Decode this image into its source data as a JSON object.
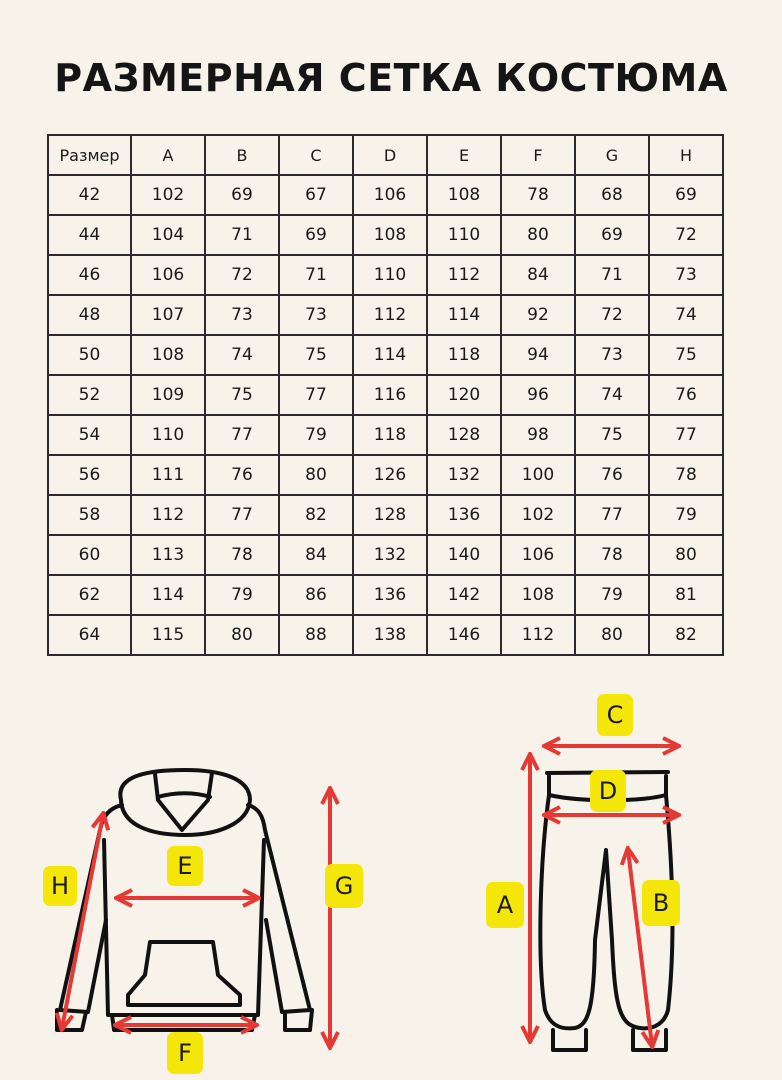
{
  "title": "РАЗМЕРНАЯ СЕТКА КОСТЮМА",
  "table": {
    "headers": [
      "Размер",
      "A",
      "B",
      "C",
      "D",
      "E",
      "F",
      "G",
      "H"
    ],
    "rows": [
      [
        "42",
        "102",
        "69",
        "67",
        "106",
        "108",
        "78",
        "68",
        "69"
      ],
      [
        "44",
        "104",
        "71",
        "69",
        "108",
        "110",
        "80",
        "69",
        "72"
      ],
      [
        "46",
        "106",
        "72",
        "71",
        "110",
        "112",
        "84",
        "71",
        "73"
      ],
      [
        "48",
        "107",
        "73",
        "73",
        "112",
        "114",
        "92",
        "72",
        "74"
      ],
      [
        "50",
        "108",
        "74",
        "75",
        "114",
        "118",
        "94",
        "73",
        "75"
      ],
      [
        "52",
        "109",
        "75",
        "77",
        "116",
        "120",
        "96",
        "74",
        "76"
      ],
      [
        "54",
        "110",
        "77",
        "79",
        "118",
        "128",
        "98",
        "75",
        "77"
      ],
      [
        "56",
        "111",
        "76",
        "80",
        "126",
        "132",
        "100",
        "76",
        "78"
      ],
      [
        "58",
        "112",
        "77",
        "82",
        "128",
        "136",
        "102",
        "77",
        "79"
      ],
      [
        "60",
        "113",
        "78",
        "84",
        "132",
        "140",
        "106",
        "78",
        "80"
      ],
      [
        "62",
        "114",
        "79",
        "86",
        "136",
        "142",
        "108",
        "79",
        "81"
      ],
      [
        "64",
        "115",
        "80",
        "88",
        "138",
        "146",
        "112",
        "80",
        "82"
      ]
    ]
  },
  "diagram": {
    "hoodie_labels": {
      "H": "H",
      "E": "E",
      "G": "G",
      "F": "F"
    },
    "pants_labels": {
      "C": "C",
      "D": "D",
      "A": "A",
      "B": "B"
    }
  },
  "colors": {
    "arrow": "#e53935",
    "label_bg": "#f5e60a",
    "outline": "#111111",
    "background": "#f7f3ea"
  }
}
